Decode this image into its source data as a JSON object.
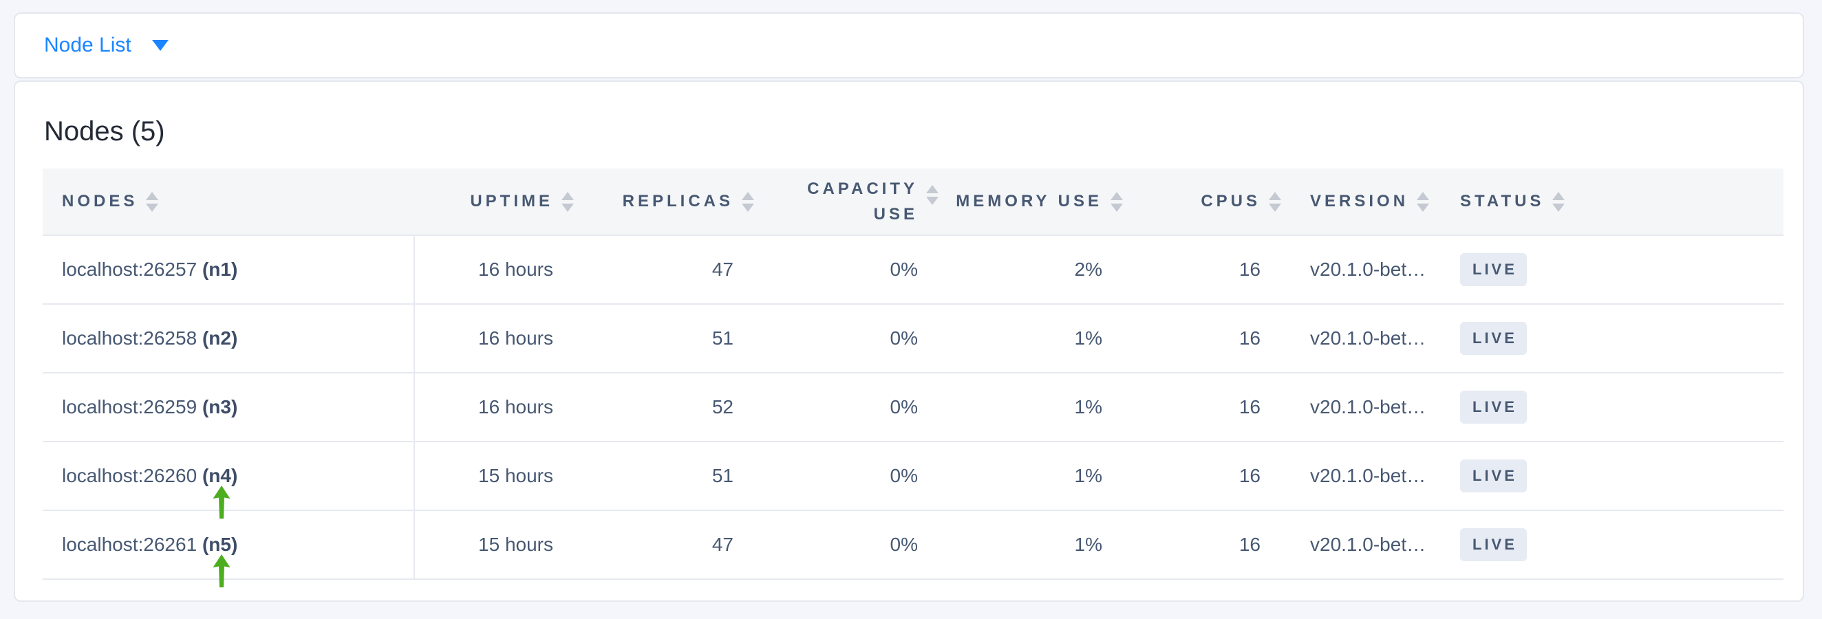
{
  "topbar": {
    "dropdown_label": "Node List",
    "dropdown_icon": "caret-down-icon"
  },
  "heading": {
    "title": "Nodes (5)"
  },
  "colors": {
    "accent_blue": "#1a85ff",
    "annotation_green": "#4cae1e",
    "badge_bg": "#e7ebf3",
    "badge_text": "#475872",
    "header_text": "#475872"
  },
  "icons": {
    "dropdown": "caret-down-icon",
    "column_sort": "sort-icon",
    "row_annotation": "green-up-arrow-icon"
  },
  "table": {
    "columns": [
      {
        "key": "nodes",
        "label": "NODES",
        "align": "left",
        "sortable": true
      },
      {
        "key": "uptime",
        "label": "UPTIME",
        "align": "right",
        "sortable": true
      },
      {
        "key": "replicas",
        "label": "REPLICAS",
        "align": "right",
        "sortable": true
      },
      {
        "key": "capacity_use",
        "label": "CAPACITY USE",
        "align": "right",
        "sortable": true
      },
      {
        "key": "memory_use",
        "label": "MEMORY USE",
        "align": "right",
        "sortable": true
      },
      {
        "key": "cpus",
        "label": "CPUS",
        "align": "right",
        "sortable": true
      },
      {
        "key": "version",
        "label": "VERSION",
        "align": "left",
        "sortable": true
      },
      {
        "key": "status",
        "label": "STATUS",
        "align": "left",
        "sortable": true
      }
    ],
    "rows": [
      {
        "address": "localhost:26257",
        "node_id": "(n1)",
        "uptime": "16 hours",
        "replicas": "47",
        "capacity_use": "0%",
        "memory_use": "2%",
        "cpus": "16",
        "version": "v20.1.0-bet…",
        "status": "LIVE",
        "annotation_arrow": false
      },
      {
        "address": "localhost:26258",
        "node_id": "(n2)",
        "uptime": "16 hours",
        "replicas": "51",
        "capacity_use": "0%",
        "memory_use": "1%",
        "cpus": "16",
        "version": "v20.1.0-bet…",
        "status": "LIVE",
        "annotation_arrow": false
      },
      {
        "address": "localhost:26259",
        "node_id": "(n3)",
        "uptime": "16 hours",
        "replicas": "52",
        "capacity_use": "0%",
        "memory_use": "1%",
        "cpus": "16",
        "version": "v20.1.0-bet…",
        "status": "LIVE",
        "annotation_arrow": false
      },
      {
        "address": "localhost:26260",
        "node_id": "(n4)",
        "uptime": "15 hours",
        "replicas": "51",
        "capacity_use": "0%",
        "memory_use": "1%",
        "cpus": "16",
        "version": "v20.1.0-bet…",
        "status": "LIVE",
        "annotation_arrow": true
      },
      {
        "address": "localhost:26261",
        "node_id": "(n5)",
        "uptime": "15 hours",
        "replicas": "47",
        "capacity_use": "0%",
        "memory_use": "1%",
        "cpus": "16",
        "version": "v20.1.0-bet…",
        "status": "LIVE",
        "annotation_arrow": true
      }
    ]
  }
}
